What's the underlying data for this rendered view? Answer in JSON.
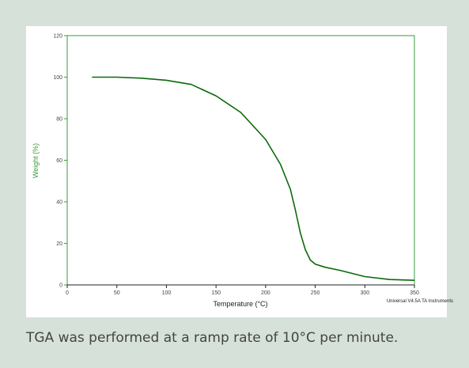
{
  "chart_data": {
    "type": "line",
    "x_label": "Temperature (°C)",
    "y_label": "Weight (%)",
    "annotation": "Universal V4.5A TA Instruments",
    "x": [
      25,
      50,
      75,
      100,
      125,
      150,
      175,
      200,
      215,
      225,
      230,
      235,
      240,
      245,
      250,
      260,
      275,
      300,
      325,
      350
    ],
    "values": [
      100,
      100,
      99.5,
      98.5,
      96.5,
      91,
      83,
      70,
      58,
      46,
      36,
      25,
      17,
      12,
      10,
      8.5,
      7,
      4,
      2.6,
      2.2
    ],
    "color": "#0a6a0a",
    "axis_color": "#3a9a3a",
    "xlim": [
      0,
      350
    ],
    "xticks": [
      0,
      50,
      100,
      150,
      200,
      250,
      300,
      350
    ],
    "ylim": [
      0,
      120
    ],
    "yticks": [
      0,
      20,
      40,
      60,
      80,
      100,
      120
    ]
  },
  "caption": "TGA was performed at a ramp rate of 10°C per minute."
}
